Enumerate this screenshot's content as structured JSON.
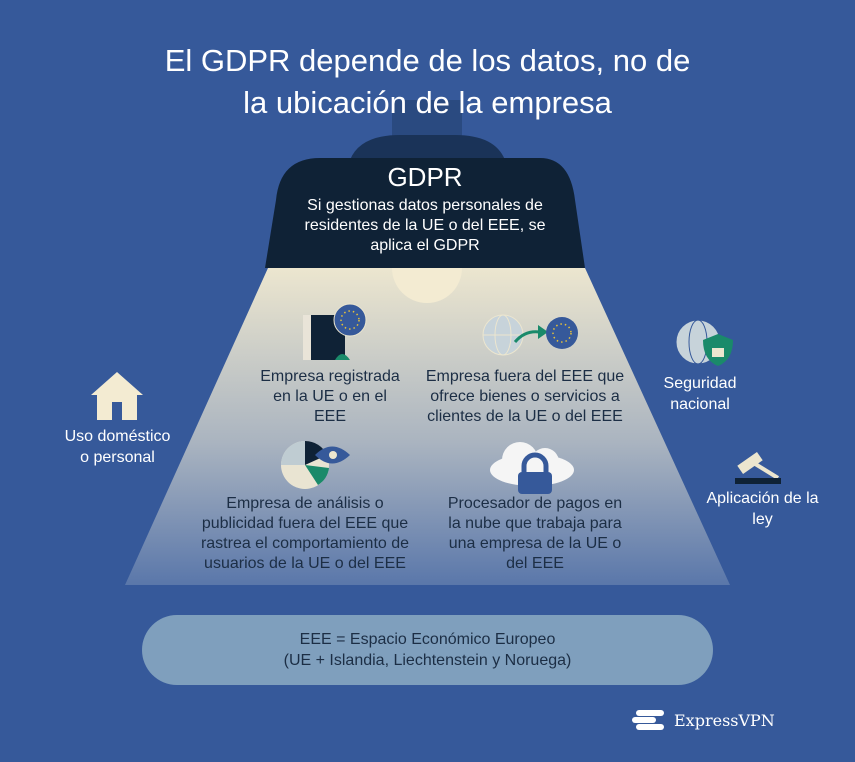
{
  "title": [
    "El GDPR depende de los datos, no de",
    "la ubicación de la empresa"
  ],
  "lamp": {
    "title": "GDPR",
    "text": [
      "Si gestionas datos personales de",
      "residentes de la UE o del EEE, se",
      "aplica el GDPR"
    ]
  },
  "inside": [
    {
      "icon": "eu-building-icon",
      "lines": [
        "Empresa registrada",
        "en la UE o en el",
        "EEE"
      ]
    },
    {
      "icon": "globe-to-eu-icon",
      "lines": [
        "Empresa fuera del EEE que",
        "ofrece bienes o servicios a",
        "clientes de la UE o del EEE"
      ]
    },
    {
      "icon": "analytics-eye-icon",
      "lines": [
        "Empresa de análisis o",
        "publicidad fuera del EEE que",
        "rastrea el comportamiento de",
        "usuarios de la UE o del EEE"
      ]
    },
    {
      "icon": "cloud-lock-icon",
      "lines": [
        "Procesador de pagos en",
        "la nube que trabaja para",
        "una empresa de la UE o",
        "del EEE"
      ]
    }
  ],
  "outside": [
    {
      "icon": "house-icon",
      "lines": [
        "Uso doméstico",
        "o personal"
      ]
    },
    {
      "icon": "globe-shield-icon",
      "lines": [
        "Seguridad",
        "nacional"
      ]
    },
    {
      "icon": "gavel-icon",
      "lines": [
        "Aplicación de la",
        "ley"
      ]
    }
  ],
  "legend": [
    "EEE = Espacio Económico Europeo",
    "(UE + Islandia, Liechtenstein y Noruega)"
  ],
  "brand": "ExpressVPN",
  "colors": {
    "background": "#36599a",
    "lamp": "#0f2236",
    "light": "#ece6cf",
    "legend": "#7f9fbd",
    "accent": "#1a8a6a"
  }
}
